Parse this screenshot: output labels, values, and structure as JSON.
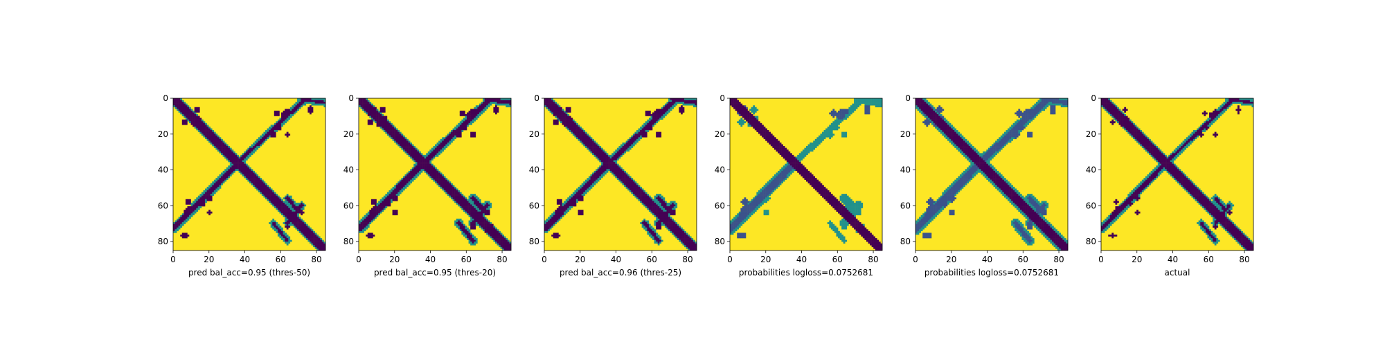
{
  "colors": {
    "background": "#fde725",
    "mark": "#440154",
    "mid_dark": "#3b528b",
    "mid": "#21918c",
    "mid_light": "#5ec962",
    "axis": "#000000"
  },
  "chart_data": [
    {
      "type": "heatmap",
      "title": "",
      "xlabel": "pred bal_acc=0.95 (thres-50)",
      "ylabel": "",
      "xlim": [
        0,
        85
      ],
      "ylim": [
        85,
        0
      ],
      "xticks": [
        0,
        20,
        40,
        60,
        80
      ],
      "yticks": [
        0,
        20,
        40,
        60,
        80
      ],
      "matrix_size": 86,
      "value_range": [
        0,
        1
      ],
      "diag_half_width": 2.2,
      "feature_lines": [
        [
          [
            0,
            0
          ],
          [
            85,
            85
          ],
          1.8,
          0
        ],
        [
          [
            0,
            73
          ],
          [
            36,
            36
          ],
          1.4,
          0
        ],
        [
          [
            36,
            36
          ],
          [
            74,
            0
          ],
          1.0,
          0
        ],
        [
          [
            64,
            56
          ],
          [
            70,
            63
          ],
          1.0,
          0
        ],
        [
          [
            64,
            70
          ],
          [
            72,
            60
          ],
          1.0,
          0
        ],
        [
          [
            64,
            80
          ],
          [
            56,
            70
          ],
          0.9,
          0
        ],
        [
          [
            72,
            0
          ],
          [
            85,
            2
          ],
          0.9,
          0
        ]
      ],
      "feature_blobs": [
        [
          7,
          8,
          2.5,
          1.6,
          0
        ],
        [
          13,
          6,
          1.5,
          1.5,
          0
        ],
        [
          11,
          14,
          1.2,
          1.2,
          0
        ],
        [
          9,
          62,
          1.8,
          1.8,
          0
        ],
        [
          20,
          64,
          1.4,
          1.4,
          0
        ],
        [
          6,
          77,
          2.2,
          1.2,
          0
        ],
        [
          16,
          59,
          1.4,
          1.6,
          0
        ],
        [
          58,
          8,
          1.5,
          1.5,
          0
        ],
        [
          56,
          20,
          1.5,
          1.5,
          0
        ],
        [
          64,
          7,
          2.0,
          1.2,
          0
        ],
        [
          72,
          64,
          1.4,
          1.4,
          0
        ],
        [
          74,
          72,
          1.2,
          1.2,
          0
        ]
      ]
    },
    {
      "type": "heatmap",
      "title": "",
      "xlabel": "pred bal_acc=0.95 (thres-20)",
      "ylabel": "",
      "xlim": [
        0,
        85
      ],
      "ylim": [
        85,
        0
      ],
      "xticks": [
        0,
        20,
        40,
        60,
        80
      ],
      "yticks": [
        0,
        20,
        40,
        60,
        80
      ],
      "matrix_size": 86,
      "value_range": [
        0,
        1
      ],
      "diag_half_width": 2.6,
      "feature_lines": [
        [
          [
            0,
            0
          ],
          [
            85,
            85
          ],
          2.2,
          0
        ],
        [
          [
            0,
            73
          ],
          [
            36,
            36
          ],
          1.7,
          0
        ],
        [
          [
            36,
            36
          ],
          [
            74,
            0
          ],
          1.4,
          0
        ],
        [
          [
            64,
            56
          ],
          [
            70,
            63
          ],
          1.2,
          0
        ],
        [
          [
            64,
            70
          ],
          [
            72,
            60
          ],
          1.2,
          0
        ],
        [
          [
            64,
            80
          ],
          [
            56,
            70
          ],
          1.1,
          0
        ],
        [
          [
            72,
            0
          ],
          [
            85,
            2
          ],
          1.1,
          0
        ]
      ],
      "feature_blobs": [
        [
          7,
          8,
          2.8,
          1.9,
          0
        ],
        [
          13,
          6,
          1.8,
          1.8,
          0
        ],
        [
          11,
          14,
          1.5,
          1.5,
          0
        ],
        [
          9,
          62,
          2.1,
          2.1,
          0
        ],
        [
          20,
          64,
          1.7,
          1.7,
          0
        ],
        [
          6,
          77,
          2.5,
          1.5,
          0
        ],
        [
          16,
          59,
          1.7,
          1.9,
          0
        ],
        [
          58,
          8,
          1.8,
          1.8,
          0
        ],
        [
          56,
          20,
          1.8,
          1.8,
          0
        ],
        [
          64,
          7,
          2.3,
          1.5,
          0
        ],
        [
          72,
          64,
          1.7,
          1.7,
          0
        ],
        [
          74,
          72,
          1.5,
          1.5,
          0
        ]
      ]
    },
    {
      "type": "heatmap",
      "title": "",
      "xlabel": "pred bal_acc=0.96 (thres-25)",
      "ylabel": "",
      "xlim": [
        0,
        85
      ],
      "ylim": [
        85,
        0
      ],
      "xticks": [
        0,
        20,
        40,
        60,
        80
      ],
      "yticks": [
        0,
        20,
        40,
        60,
        80
      ],
      "matrix_size": 86,
      "value_range": [
        0,
        1
      ],
      "diag_half_width": 2.5,
      "feature_lines": [
        [
          [
            0,
            0
          ],
          [
            85,
            85
          ],
          2.1,
          0
        ],
        [
          [
            0,
            73
          ],
          [
            36,
            36
          ],
          1.6,
          0
        ],
        [
          [
            36,
            36
          ],
          [
            74,
            0
          ],
          1.3,
          0
        ],
        [
          [
            64,
            56
          ],
          [
            70,
            63
          ],
          1.1,
          0
        ],
        [
          [
            64,
            70
          ],
          [
            72,
            60
          ],
          1.1,
          0
        ],
        [
          [
            64,
            80
          ],
          [
            56,
            70
          ],
          1.0,
          0
        ],
        [
          [
            72,
            0
          ],
          [
            85,
            2
          ],
          1.0,
          0
        ]
      ],
      "feature_blobs": [
        [
          7,
          8,
          2.7,
          1.8,
          0
        ],
        [
          13,
          6,
          1.7,
          1.7,
          0
        ],
        [
          11,
          14,
          1.4,
          1.4,
          0
        ],
        [
          9,
          62,
          2.0,
          2.0,
          0
        ],
        [
          20,
          64,
          1.6,
          1.6,
          0
        ],
        [
          6,
          77,
          2.4,
          1.4,
          0
        ],
        [
          16,
          59,
          1.6,
          1.8,
          0
        ],
        [
          58,
          8,
          1.7,
          1.7,
          0
        ],
        [
          56,
          20,
          1.7,
          1.7,
          0
        ],
        [
          64,
          7,
          2.2,
          1.4,
          0
        ],
        [
          72,
          64,
          1.6,
          1.6,
          0
        ],
        [
          74,
          72,
          1.4,
          1.4,
          0
        ]
      ]
    },
    {
      "type": "heatmap",
      "title": "",
      "xlabel": "probabilities logloss=0.0752681",
      "ylabel": "",
      "xlim": [
        0,
        85
      ],
      "ylim": [
        85,
        0
      ],
      "xticks": [
        0,
        20,
        40,
        60,
        80
      ],
      "yticks": [
        0,
        20,
        40,
        60,
        80
      ],
      "matrix_size": 86,
      "value_range": [
        0,
        1
      ],
      "diag_half_width": 2.6,
      "feature_lines": [
        [
          [
            0,
            0
          ],
          [
            85,
            85
          ],
          2.4,
          0.55
        ],
        [
          [
            0,
            73
          ],
          [
            36,
            36
          ],
          2.0,
          0.35
        ],
        [
          [
            36,
            36
          ],
          [
            74,
            0
          ],
          1.8,
          0.5
        ],
        [
          [
            64,
            56
          ],
          [
            70,
            63
          ],
          1.4,
          0.45
        ],
        [
          [
            64,
            70
          ],
          [
            72,
            60
          ],
          1.4,
          0.45
        ],
        [
          [
            64,
            80
          ],
          [
            56,
            70
          ],
          1.3,
          0.5
        ],
        [
          [
            72,
            0
          ],
          [
            85,
            2
          ],
          1.3,
          0.45
        ]
      ],
      "feature_blobs": [
        [
          7,
          8,
          3.0,
          2.1,
          0.35
        ],
        [
          13,
          6,
          2.0,
          2.0,
          0.5
        ],
        [
          11,
          14,
          1.7,
          1.7,
          0.55
        ],
        [
          9,
          62,
          2.3,
          2.3,
          0.4
        ],
        [
          20,
          64,
          1.9,
          1.9,
          0.45
        ],
        [
          6,
          77,
          2.7,
          1.7,
          0.35
        ],
        [
          16,
          59,
          1.9,
          2.1,
          0.5
        ],
        [
          58,
          8,
          2.0,
          2.0,
          0.4
        ],
        [
          56,
          20,
          2.0,
          2.0,
          0.45
        ],
        [
          64,
          7,
          2.5,
          1.7,
          0.4
        ],
        [
          72,
          64,
          1.9,
          1.9,
          0.5
        ],
        [
          74,
          72,
          1.7,
          1.7,
          0.55
        ]
      ]
    },
    {
      "type": "heatmap",
      "title": "",
      "xlabel": "probabilities logloss=0.0752681",
      "ylabel": "",
      "xlim": [
        0,
        85
      ],
      "ylim": [
        85,
        0
      ],
      "xticks": [
        0,
        20,
        40,
        60,
        80
      ],
      "yticks": [
        0,
        20,
        40,
        60,
        80
      ],
      "matrix_size": 86,
      "value_range": [
        0,
        1
      ],
      "diag_half_width": 2.6,
      "feature_lines": [
        [
          [
            0,
            0
          ],
          [
            85,
            85
          ],
          2.5,
          0.1
        ],
        [
          [
            0,
            73
          ],
          [
            36,
            36
          ],
          2.0,
          0.2
        ],
        [
          [
            36,
            36
          ],
          [
            74,
            0
          ],
          1.8,
          0.25
        ],
        [
          [
            64,
            56
          ],
          [
            70,
            63
          ],
          1.4,
          0.25
        ],
        [
          [
            64,
            70
          ],
          [
            72,
            60
          ],
          1.4,
          0.25
        ],
        [
          [
            64,
            80
          ],
          [
            56,
            70
          ],
          1.3,
          0.25
        ],
        [
          [
            72,
            0
          ],
          [
            85,
            2
          ],
          1.3,
          0.3
        ]
      ],
      "feature_blobs": [
        [
          7,
          8,
          3.0,
          2.1,
          0.2
        ],
        [
          13,
          6,
          2.0,
          2.0,
          0.3
        ],
        [
          11,
          14,
          1.7,
          1.7,
          0.35
        ],
        [
          9,
          62,
          2.3,
          2.3,
          0.25
        ],
        [
          20,
          64,
          1.9,
          1.9,
          0.3
        ],
        [
          6,
          77,
          2.7,
          1.7,
          0.25
        ],
        [
          16,
          59,
          1.9,
          2.1,
          0.3
        ],
        [
          58,
          8,
          2.0,
          2.0,
          0.25
        ],
        [
          56,
          20,
          2.0,
          2.0,
          0.3
        ],
        [
          64,
          7,
          2.5,
          1.7,
          0.25
        ],
        [
          72,
          64,
          1.9,
          1.9,
          0.3
        ],
        [
          74,
          72,
          1.7,
          1.7,
          0.35
        ]
      ]
    },
    {
      "type": "heatmap",
      "title": "",
      "xlabel": "actual",
      "ylabel": "",
      "xlim": [
        0,
        85
      ],
      "ylim": [
        85,
        0
      ],
      "xticks": [
        0,
        20,
        40,
        60,
        80
      ],
      "yticks": [
        0,
        20,
        40,
        60,
        80
      ],
      "matrix_size": 86,
      "value_range": [
        0,
        1
      ],
      "diag_half_width": 2.2,
      "feature_lines": [
        [
          [
            0,
            0
          ],
          [
            85,
            85
          ],
          1.8,
          0
        ],
        [
          [
            0,
            73
          ],
          [
            36,
            36
          ],
          1.3,
          0
        ],
        [
          [
            36,
            36
          ],
          [
            74,
            0
          ],
          0.9,
          0
        ],
        [
          [
            64,
            56
          ],
          [
            70,
            63
          ],
          0.9,
          0
        ],
        [
          [
            64,
            70
          ],
          [
            72,
            60
          ],
          0.9,
          0
        ],
        [
          [
            64,
            80
          ],
          [
            56,
            70
          ],
          0.8,
          0
        ],
        [
          [
            72,
            0
          ],
          [
            85,
            2
          ],
          0.8,
          0
        ]
      ],
      "feature_blobs": [
        [
          7,
          8,
          2.3,
          1.5,
          0
        ],
        [
          13,
          6,
          1.4,
          1.4,
          0
        ],
        [
          11,
          14,
          1.1,
          1.1,
          0
        ],
        [
          9,
          62,
          1.7,
          1.7,
          0
        ],
        [
          20,
          64,
          1.3,
          1.3,
          0
        ],
        [
          6,
          77,
          2.0,
          1.1,
          0
        ],
        [
          16,
          59,
          1.3,
          1.5,
          0
        ],
        [
          58,
          8,
          1.4,
          1.4,
          0
        ],
        [
          56,
          20,
          1.4,
          1.4,
          0
        ],
        [
          64,
          7,
          1.9,
          1.1,
          0
        ],
        [
          72,
          64,
          1.3,
          1.3,
          0
        ],
        [
          74,
          72,
          1.1,
          1.1,
          0
        ]
      ]
    }
  ]
}
